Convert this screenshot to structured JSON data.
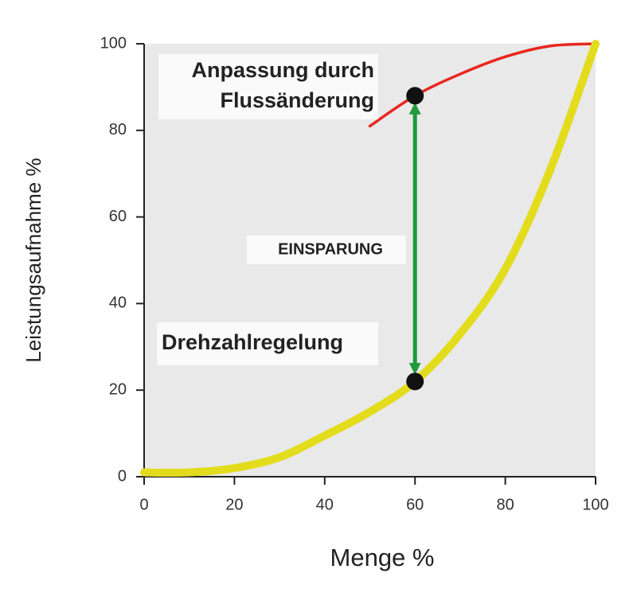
{
  "chart_data": {
    "type": "line",
    "x_label": "Menge %",
    "y_label": "Leistungsaufnahme %",
    "xlim": [
      0,
      100
    ],
    "ylim": [
      0,
      100
    ],
    "xticks": [
      0,
      20,
      40,
      60,
      80,
      100
    ],
    "yticks": [
      0,
      20,
      40,
      60,
      80,
      100
    ],
    "series": [
      {
        "color": "#e8271e",
        "x": [
          50,
          60,
          70,
          80,
          90,
          100
        ],
        "values": [
          81,
          88,
          93,
          97,
          99.5,
          100
        ]
      },
      {
        "color": "#e3dc1c",
        "x": [
          0,
          10,
          20,
          30,
          40,
          50,
          60,
          70,
          80,
          90,
          100
        ],
        "values": [
          1,
          1,
          2,
          4.5,
          9.5,
          15,
          22,
          33,
          48,
          71,
          100
        ]
      }
    ],
    "markers": {
      "color": "#111111",
      "x": [
        60,
        60
      ],
      "values": [
        88,
        22
      ]
    },
    "arrow_color": "#1f9a3c",
    "annotations": [
      {
        "lines": [
          "Anpassung durch",
          "Flussänderung"
        ]
      },
      {
        "lines": [
          "EINSPARUNG"
        ]
      },
      {
        "lines": [
          "Drehzahlregelung"
        ]
      }
    ]
  }
}
